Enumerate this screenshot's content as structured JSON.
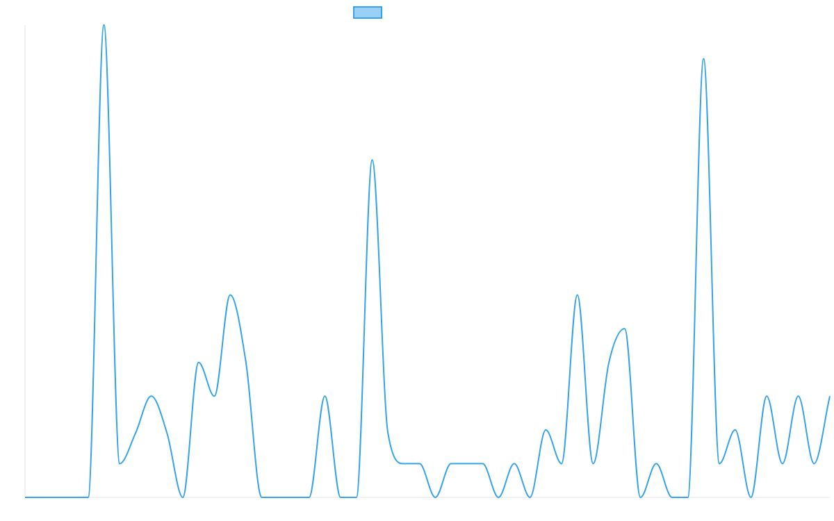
{
  "chart_data": {
    "type": "line",
    "title": "",
    "xlabel": "",
    "ylabel": "",
    "x": [
      0,
      1,
      2,
      3,
      4,
      5,
      6,
      7,
      8,
      9,
      10,
      11,
      12,
      13,
      14,
      15,
      16,
      17,
      18,
      19,
      20,
      21,
      22,
      23,
      24,
      25,
      26,
      27,
      28,
      29,
      30,
      31,
      32,
      33,
      34,
      35,
      36,
      37,
      38,
      39,
      40,
      41,
      42,
      43,
      44,
      45,
      46,
      47,
      48,
      49,
      50,
      51
    ],
    "series": [
      {
        "name": "",
        "color": "#36a2eb",
        "fill": "#9ad0f5",
        "values": [
          0,
          0,
          0,
          0,
          0,
          14,
          1,
          1.9,
          3,
          1.9,
          0,
          4,
          3,
          6,
          4,
          0,
          0,
          0,
          0,
          3,
          0,
          0,
          10,
          1.9,
          1,
          1,
          0,
          1,
          1,
          1,
          0,
          1,
          0,
          2,
          1,
          6,
          1,
          4,
          5,
          0,
          1,
          0,
          0,
          13,
          1,
          2,
          0,
          3,
          1,
          3,
          1,
          3
        ]
      }
    ],
    "ylim": [
      0,
      14
    ],
    "grid": false,
    "legend": "top-center"
  }
}
